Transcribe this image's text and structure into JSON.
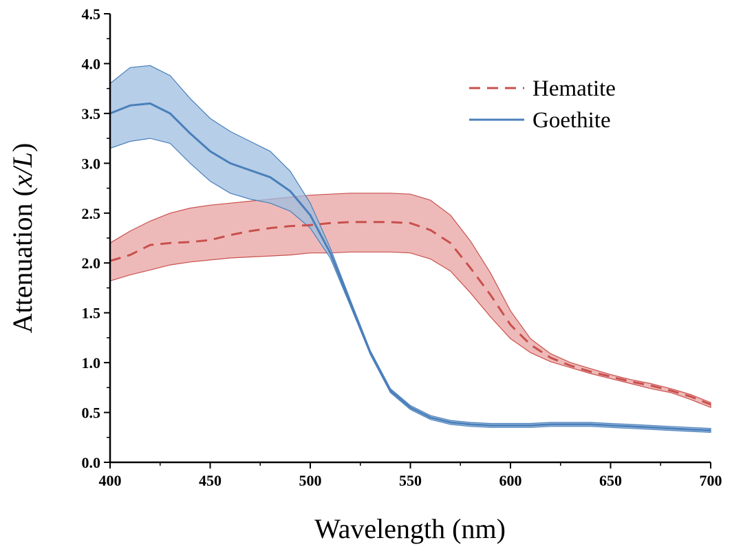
{
  "chart_data": {
    "type": "line",
    "title": "",
    "xlabel": "Wavelength (nm)",
    "ylabel_main": "Attenuation (",
    "ylabel_italic": "x/L",
    "ylabel_close": ")",
    "xlim": [
      400,
      700
    ],
    "ylim": [
      0,
      4.5
    ],
    "x_ticks": [
      "400",
      "450",
      "500",
      "550",
      "600",
      "650",
      "700"
    ],
    "y_ticks": [
      "0.0",
      "0.5",
      "1.0",
      "1.5",
      "2.0",
      "2.5",
      "3.0",
      "3.5",
      "4.0",
      "4.5"
    ],
    "grid": false,
    "legend_position": "top-right",
    "series": [
      {
        "name": "Hematite",
        "color": "#c8504d",
        "fill": "#e8a3a1",
        "dash": "dashed",
        "x": [
          400,
          410,
          420,
          430,
          440,
          450,
          460,
          470,
          480,
          490,
          500,
          510,
          520,
          530,
          540,
          550,
          560,
          570,
          580,
          590,
          600,
          610,
          620,
          630,
          640,
          650,
          660,
          670,
          680,
          690,
          700
        ],
        "y": [
          2.02,
          2.08,
          2.18,
          2.2,
          2.21,
          2.23,
          2.28,
          2.32,
          2.35,
          2.37,
          2.38,
          2.4,
          2.41,
          2.41,
          2.41,
          2.4,
          2.33,
          2.2,
          1.95,
          1.68,
          1.38,
          1.18,
          1.05,
          0.97,
          0.91,
          0.86,
          0.81,
          0.77,
          0.72,
          0.66,
          0.58
        ],
        "upper": [
          2.2,
          2.32,
          2.42,
          2.5,
          2.55,
          2.58,
          2.6,
          2.62,
          2.64,
          2.66,
          2.68,
          2.69,
          2.7,
          2.7,
          2.7,
          2.69,
          2.63,
          2.48,
          2.22,
          1.9,
          1.52,
          1.24,
          1.09,
          1.0,
          0.94,
          0.88,
          0.83,
          0.79,
          0.74,
          0.68,
          0.6
        ],
        "lower": [
          1.82,
          1.88,
          1.93,
          1.98,
          2.01,
          2.03,
          2.05,
          2.06,
          2.07,
          2.08,
          2.1,
          2.1,
          2.11,
          2.11,
          2.11,
          2.1,
          2.04,
          1.92,
          1.7,
          1.46,
          1.24,
          1.1,
          1.01,
          0.95,
          0.89,
          0.84,
          0.79,
          0.74,
          0.7,
          0.63,
          0.55
        ]
      },
      {
        "name": "Goethite",
        "color": "#4a7fba",
        "fill": "#9dbde0",
        "dash": "solid",
        "x": [
          400,
          410,
          420,
          430,
          440,
          450,
          460,
          470,
          480,
          490,
          500,
          510,
          520,
          530,
          540,
          550,
          560,
          570,
          580,
          590,
          600,
          610,
          620,
          630,
          640,
          650,
          660,
          670,
          680,
          690,
          700
        ],
        "y": [
          3.5,
          3.58,
          3.6,
          3.5,
          3.3,
          3.12,
          3.0,
          2.93,
          2.86,
          2.72,
          2.48,
          2.1,
          1.6,
          1.1,
          0.72,
          0.55,
          0.45,
          0.4,
          0.38,
          0.37,
          0.37,
          0.37,
          0.38,
          0.38,
          0.38,
          0.37,
          0.36,
          0.35,
          0.34,
          0.33,
          0.32
        ],
        "upper": [
          3.8,
          3.96,
          3.98,
          3.88,
          3.65,
          3.45,
          3.32,
          3.22,
          3.12,
          2.92,
          2.6,
          2.15,
          1.63,
          1.12,
          0.74,
          0.57,
          0.47,
          0.42,
          0.4,
          0.39,
          0.39,
          0.39,
          0.4,
          0.4,
          0.4,
          0.39,
          0.38,
          0.37,
          0.36,
          0.35,
          0.34
        ],
        "lower": [
          3.15,
          3.22,
          3.25,
          3.2,
          3.0,
          2.82,
          2.7,
          2.64,
          2.6,
          2.52,
          2.35,
          2.05,
          1.57,
          1.08,
          0.7,
          0.53,
          0.43,
          0.38,
          0.36,
          0.35,
          0.35,
          0.35,
          0.36,
          0.36,
          0.36,
          0.35,
          0.34,
          0.33,
          0.32,
          0.31,
          0.3
        ]
      }
    ]
  }
}
